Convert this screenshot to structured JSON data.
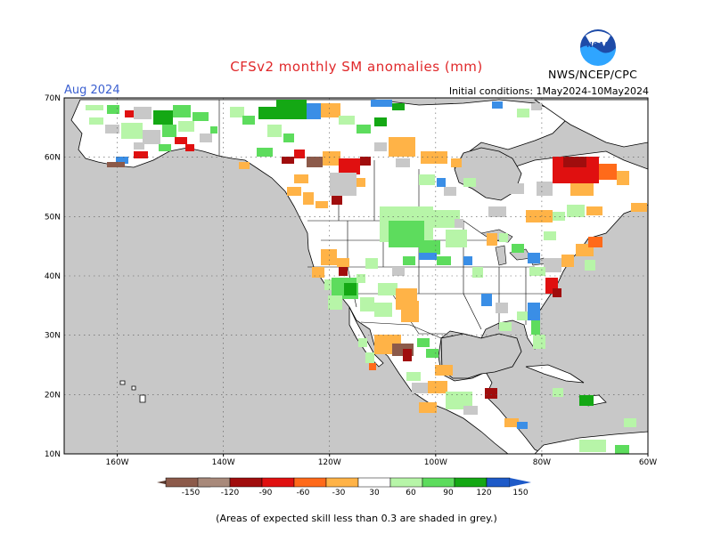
{
  "title": "CFSv2 monthly SM anomalies (mm)",
  "month_label": "Aug 2024",
  "initial_conditions": "Initial conditions: 1May2024-10May2024",
  "agency": "NWS/NCEP/CPC",
  "logo_text": "NOAA",
  "footnote": "(Areas of expected skill less than 0.3 are shaded in grey.)",
  "map": {
    "lon_range": [
      -170,
      -60
    ],
    "lat_range": [
      10,
      70
    ],
    "lon_ticks": [
      "160W",
      "140W",
      "120W",
      "100W",
      "80W",
      "60W"
    ],
    "lat_ticks": [
      "70N",
      "60N",
      "50N",
      "40N",
      "30N",
      "20N",
      "10N"
    ],
    "grid": "dotted",
    "land_color": "#ffffff",
    "ocean_color": "#c8c8c8"
  },
  "colorbar": {
    "labels": [
      "-150",
      "-120",
      "-90",
      "-60",
      "-30",
      "30",
      "60",
      "90",
      "120",
      "150"
    ],
    "colors": [
      "#8c5a4a",
      "#a8897a",
      "#a00d0d",
      "#e01010",
      "#ff6a1a",
      "#ffb347",
      "#ffffff",
      "#b7f5a8",
      "#5ddc5d",
      "#14a814",
      "#3a8ee6",
      "#1e5ac8"
    ]
  },
  "colors": {
    "grey_skill": "#c8c8c8",
    "title": "#e0282a",
    "month": "#3a5fd0"
  }
}
